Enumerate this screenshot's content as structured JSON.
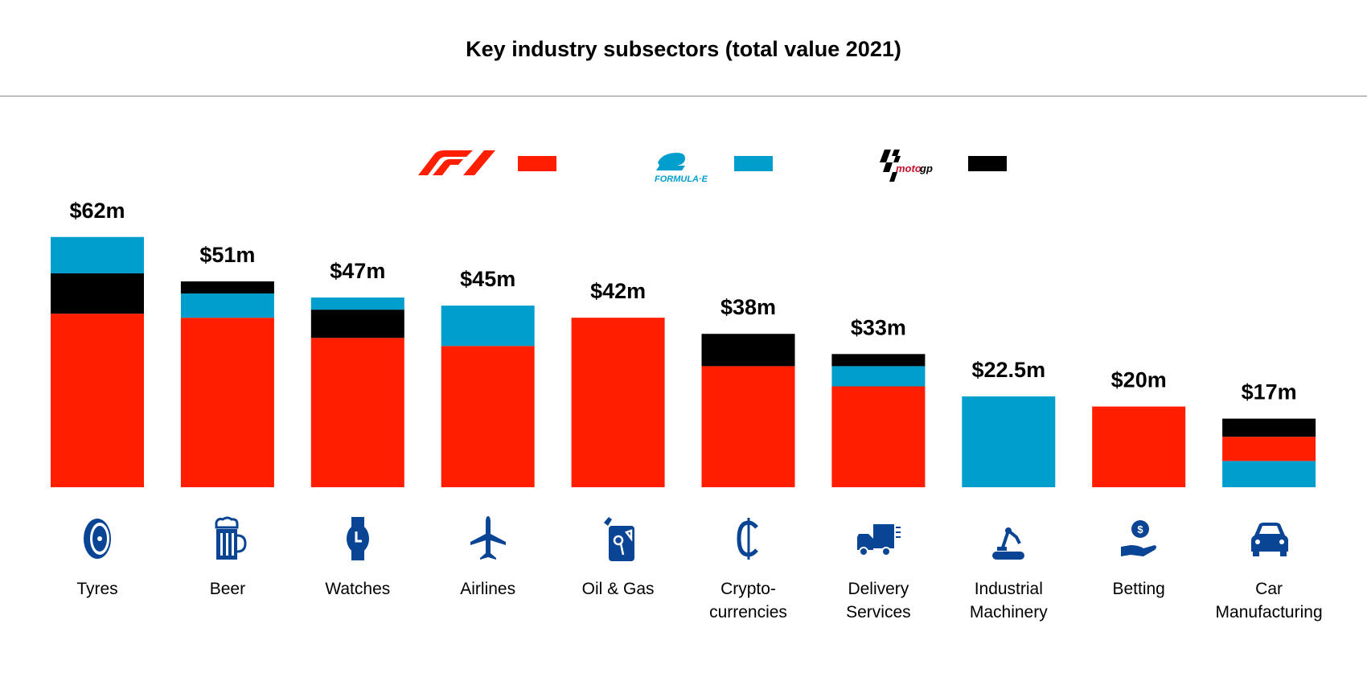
{
  "chart_data": {
    "type": "bar",
    "stacked": true,
    "title": "Key industry subsectors (total value 2021)",
    "unit": "$m",
    "legend_placement": "top",
    "grid": false,
    "legend": [
      {
        "series": "F1",
        "logo": "Formula 1 logo",
        "color": "#ff1e00"
      },
      {
        "series": "Formula E",
        "logo": "Formula E logo",
        "color": "#009ecc"
      },
      {
        "series": "MotoGP",
        "logo": "MotoGP logo",
        "color": "#000000"
      }
    ],
    "categories": [
      {
        "label": [
          "Tyres"
        ],
        "icon": "tyre-icon",
        "total_label": "$62m",
        "segments": [
          [
            "F1",
            43
          ],
          [
            "MotoGP",
            10
          ],
          [
            "Formula E",
            9
          ]
        ]
      },
      {
        "label": [
          "Beer"
        ],
        "icon": "beer-icon",
        "total_label": "$51m",
        "segments": [
          [
            "F1",
            42
          ],
          [
            "Formula E",
            6
          ],
          [
            "MotoGP",
            3
          ]
        ]
      },
      {
        "label": [
          "Watches"
        ],
        "icon": "watch-icon",
        "total_label": "$47m",
        "segments": [
          [
            "F1",
            37
          ],
          [
            "MotoGP",
            7
          ],
          [
            "Formula E",
            3
          ]
        ]
      },
      {
        "label": [
          "Airlines"
        ],
        "icon": "airplane-icon",
        "total_label": "$45m",
        "segments": [
          [
            "F1",
            35
          ],
          [
            "Formula E",
            10
          ]
        ]
      },
      {
        "label": [
          "Oil & Gas"
        ],
        "icon": "fuel-can-icon",
        "total_label": "$42m",
        "segments": [
          [
            "F1",
            42
          ]
        ]
      },
      {
        "label": [
          "Crypto-",
          "currencies"
        ],
        "icon": "cryptocurrency-icon",
        "total_label": "$38m",
        "segments": [
          [
            "F1",
            30
          ],
          [
            "MotoGP",
            8
          ]
        ]
      },
      {
        "label": [
          "Delivery",
          "Services"
        ],
        "icon": "delivery-truck-icon",
        "total_label": "$33m",
        "segments": [
          [
            "F1",
            25
          ],
          [
            "Formula E",
            5
          ],
          [
            "MotoGP",
            3
          ]
        ]
      },
      {
        "label": [
          "Industrial",
          "Machinery"
        ],
        "icon": "robot-arm-icon",
        "total_label": "$22.5m",
        "segments": [
          [
            "Formula E",
            22.5
          ]
        ]
      },
      {
        "label": [
          "Betting"
        ],
        "icon": "betting-coin-hand-icon",
        "total_label": "$20m",
        "segments": [
          [
            "F1",
            20
          ]
        ]
      },
      {
        "label": [
          "Car",
          "Manufacturing"
        ],
        "icon": "car-icon",
        "total_label": "$17m",
        "segments": [
          [
            "Formula E",
            6.5
          ],
          [
            "F1",
            6
          ],
          [
            "MotoGP",
            4.5
          ]
        ]
      }
    ],
    "icon_color": "#0a4494"
  }
}
